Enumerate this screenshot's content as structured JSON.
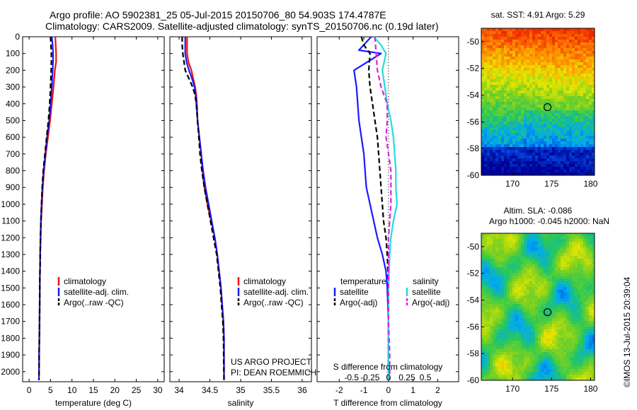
{
  "header": {
    "title_line1": "Argo profile: AO 5902381_25 05-Jul-2015 20150706_80 54.903S 174.4787E",
    "title_line2": "Climatology: CARS2009. Satellite-adjusted climatology: synTS_20150706.nc (0.19d later)"
  },
  "watermark": "©IMOS 13-Jul-2015 20:39:04",
  "colors": {
    "red": "#ee1111",
    "blue": "#1a1aff",
    "black": "#000000",
    "cyan": "#22dddd",
    "magenta": "#dd22dd"
  },
  "chart_data": [
    {
      "type": "line",
      "id": "temperature",
      "xlabel": "temperature (deg C)",
      "xlim": [
        -1.5,
        31.5
      ],
      "xticks": [
        0,
        5,
        10,
        15,
        20,
        25,
        30
      ],
      "ylim": [
        0,
        2060
      ],
      "yticks": [
        0,
        100,
        200,
        300,
        400,
        500,
        600,
        700,
        800,
        900,
        1000,
        1100,
        1200,
        1300,
        1400,
        1500,
        1600,
        1700,
        1800,
        1900,
        2000
      ],
      "legend": [
        "climatology",
        "satellite-adj. clim.",
        "Argo(..raw -QC)"
      ],
      "series": [
        {
          "name": "climatology",
          "color": "red",
          "dash": false,
          "points": [
            [
              6.1,
              0
            ],
            [
              6.2,
              50
            ],
            [
              6.3,
              100
            ],
            [
              6.3,
              150
            ],
            [
              6.0,
              200
            ],
            [
              5.7,
              300
            ],
            [
              5.3,
              400
            ],
            [
              4.9,
              500
            ],
            [
              4.4,
              600
            ],
            [
              3.9,
              700
            ],
            [
              3.5,
              800
            ],
            [
              3.2,
              900
            ],
            [
              3.0,
              1000
            ],
            [
              2.8,
              1100
            ],
            [
              2.7,
              1200
            ],
            [
              2.6,
              1300
            ],
            [
              2.55,
              1400
            ],
            [
              2.5,
              1500
            ],
            [
              2.45,
              1700
            ],
            [
              2.35,
              1900
            ],
            [
              2.3,
              2050
            ]
          ]
        },
        {
          "name": "satellite-adj. clim.",
          "color": "blue",
          "dash": false,
          "points": [
            [
              5.3,
              0
            ],
            [
              5.5,
              50
            ],
            [
              5.6,
              100
            ],
            [
              5.6,
              150
            ],
            [
              5.5,
              200
            ],
            [
              5.3,
              300
            ],
            [
              5.0,
              400
            ],
            [
              4.7,
              500
            ],
            [
              4.2,
              600
            ],
            [
              3.8,
              700
            ],
            [
              3.4,
              800
            ],
            [
              3.1,
              900
            ],
            [
              2.9,
              1000
            ],
            [
              2.75,
              1100
            ],
            [
              2.65,
              1200
            ],
            [
              2.6,
              1300
            ],
            [
              2.55,
              1400
            ],
            [
              2.5,
              1500
            ],
            [
              2.45,
              1700
            ],
            [
              2.35,
              1900
            ],
            [
              2.3,
              2050
            ]
          ]
        },
        {
          "name": "Argo(..raw -QC)",
          "color": "black",
          "dash": true,
          "points": [
            [
              5.0,
              0
            ],
            [
              5.1,
              50
            ],
            [
              5.2,
              100
            ],
            [
              5.2,
              150
            ],
            [
              5.15,
              200
            ],
            [
              5.0,
              300
            ],
            [
              4.8,
              400
            ],
            [
              4.5,
              500
            ],
            [
              4.1,
              600
            ],
            [
              3.7,
              700
            ],
            [
              3.3,
              800
            ],
            [
              3.05,
              900
            ],
            [
              2.9,
              1000
            ],
            [
              2.75,
              1100
            ],
            [
              2.65,
              1200
            ],
            [
              2.6,
              1300
            ],
            [
              2.55,
              1400
            ],
            [
              2.5,
              1500
            ],
            [
              2.45,
              1700
            ],
            [
              2.35,
              1900
            ],
            [
              2.3,
              2050
            ]
          ]
        }
      ]
    },
    {
      "type": "line",
      "id": "salinity",
      "xlabel": "salinity",
      "xlim": [
        33.85,
        36.15
      ],
      "xticks": [
        34,
        34.5,
        35,
        35.5,
        36
      ],
      "ylim": [
        0,
        2060
      ],
      "legend": [
        "climatology",
        "satellite-adj. clim.",
        "Argo(..raw -QC)"
      ],
      "annotation_line1": "US ARGO PROJECT",
      "annotation_line2": "PI: DEAN ROEMMICH",
      "series": [
        {
          "name": "climatology",
          "color": "red",
          "dash": false,
          "points": [
            [
              34.13,
              0
            ],
            [
              34.13,
              50
            ],
            [
              34.13,
              100
            ],
            [
              34.15,
              150
            ],
            [
              34.2,
              200
            ],
            [
              34.23,
              250
            ],
            [
              34.26,
              300
            ],
            [
              34.28,
              350
            ],
            [
              34.29,
              400
            ],
            [
              34.3,
              500
            ],
            [
              34.33,
              600
            ],
            [
              34.36,
              700
            ],
            [
              34.38,
              800
            ],
            [
              34.41,
              900
            ],
            [
              34.46,
              1000
            ],
            [
              34.52,
              1100
            ],
            [
              34.58,
              1200
            ],
            [
              34.62,
              1300
            ],
            [
              34.65,
              1400
            ],
            [
              34.68,
              1500
            ],
            [
              34.7,
              1600
            ],
            [
              34.72,
              1700
            ],
            [
              34.73,
              1800
            ],
            [
              34.73,
              2050
            ]
          ]
        },
        {
          "name": "satellite-adj. clim.",
          "color": "blue",
          "dash": false,
          "points": [
            [
              34.1,
              0
            ],
            [
              34.1,
              50
            ],
            [
              34.1,
              100
            ],
            [
              34.12,
              150
            ],
            [
              34.16,
              200
            ],
            [
              34.21,
              250
            ],
            [
              34.25,
              300
            ],
            [
              34.27,
              350
            ],
            [
              34.28,
              400
            ],
            [
              34.3,
              500
            ],
            [
              34.33,
              600
            ],
            [
              34.36,
              700
            ],
            [
              34.39,
              800
            ],
            [
              34.43,
              900
            ],
            [
              34.48,
              1000
            ],
            [
              34.53,
              1100
            ],
            [
              34.58,
              1200
            ],
            [
              34.62,
              1300
            ],
            [
              34.65,
              1400
            ],
            [
              34.68,
              1500
            ],
            [
              34.7,
              1600
            ],
            [
              34.72,
              1700
            ],
            [
              34.73,
              1800
            ],
            [
              34.73,
              2050
            ]
          ]
        },
        {
          "name": "Argo(..raw -QC)",
          "color": "black",
          "dash": true,
          "points": [
            [
              34.05,
              0
            ],
            [
              34.05,
              50
            ],
            [
              34.06,
              100
            ],
            [
              34.08,
              150
            ],
            [
              34.1,
              200
            ],
            [
              34.16,
              250
            ],
            [
              34.22,
              300
            ],
            [
              34.26,
              350
            ],
            [
              34.28,
              400
            ],
            [
              34.3,
              500
            ],
            [
              34.32,
              600
            ],
            [
              34.34,
              700
            ],
            [
              34.37,
              800
            ],
            [
              34.41,
              900
            ],
            [
              34.46,
              1000
            ],
            [
              34.51,
              1100
            ],
            [
              34.56,
              1200
            ],
            [
              34.61,
              1300
            ],
            [
              34.64,
              1400
            ],
            [
              34.67,
              1500
            ],
            [
              34.69,
              1600
            ],
            [
              34.71,
              1700
            ],
            [
              34.72,
              1800
            ],
            [
              34.73,
              2050
            ]
          ]
        }
      ]
    },
    {
      "type": "line",
      "id": "differences",
      "xlabel": "T difference from climatology",
      "xlabel_top": "S difference from climatology",
      "xlim": [
        -2.9,
        2.85
      ],
      "xticks": [
        -2,
        -1,
        0,
        1,
        2
      ],
      "xticks_top": [
        {
          "pos": -1.5,
          "label": "-0.5"
        },
        {
          "pos": -0.75,
          "label": "-0.25"
        },
        {
          "pos": 0,
          "label": "0"
        },
        {
          "pos": 0.75,
          "label": "0.25"
        },
        {
          "pos": 1.5,
          "label": "0.5"
        }
      ],
      "ylim": [
        0,
        2060
      ],
      "legend_t_title": "temperature",
      "legend_s_title": "salinity",
      "legend_t": [
        "satellite",
        "Argo(-adj)"
      ],
      "legend_s": [
        "satellite",
        "Argo(-adj)"
      ],
      "series": [
        {
          "name": "T satellite",
          "color": "blue",
          "dash": false,
          "points": [
            [
              -0.7,
              0
            ],
            [
              -1.2,
              80
            ],
            [
              -0.3,
              100
            ],
            [
              -1.4,
              200
            ],
            [
              -1.3,
              300
            ],
            [
              -1.25,
              400
            ],
            [
              -1.2,
              500
            ],
            [
              -1.1,
              600
            ],
            [
              -1.0,
              700
            ],
            [
              -0.95,
              800
            ],
            [
              -0.9,
              900
            ],
            [
              -0.75,
              1000
            ],
            [
              -0.6,
              1100
            ],
            [
              -0.45,
              1200
            ],
            [
              -0.25,
              1300
            ],
            [
              -0.1,
              1400
            ],
            [
              -0.05,
              1500
            ],
            [
              0,
              1700
            ],
            [
              0,
              2050
            ]
          ]
        },
        {
          "name": "T Argo(-adj)",
          "color": "black",
          "dash": true,
          "points": [
            [
              -1.1,
              0
            ],
            [
              -1.0,
              50
            ],
            [
              -0.75,
              100
            ],
            [
              -0.8,
              200
            ],
            [
              -0.75,
              300
            ],
            [
              -0.65,
              400
            ],
            [
              -0.55,
              500
            ],
            [
              -0.45,
              600
            ],
            [
              -0.4,
              700
            ],
            [
              -0.35,
              800
            ],
            [
              -0.3,
              900
            ],
            [
              -0.25,
              1000
            ],
            [
              -0.2,
              1100
            ],
            [
              -0.1,
              1200
            ],
            [
              -0.05,
              1300
            ],
            [
              0,
              1500
            ],
            [
              0,
              2050
            ]
          ]
        },
        {
          "name": "S satellite",
          "color": "cyan",
          "dash": false,
          "points": [
            [
              -0.6,
              0
            ],
            [
              -0.3,
              50
            ],
            [
              -0.1,
              100
            ],
            [
              -0.25,
              200
            ],
            [
              -0.15,
              300
            ],
            [
              -0.05,
              400
            ],
            [
              0.1,
              500
            ],
            [
              0.2,
              600
            ],
            [
              0.25,
              700
            ],
            [
              0.3,
              800
            ],
            [
              0.3,
              900
            ],
            [
              0.35,
              1000
            ],
            [
              0.2,
              1100
            ],
            [
              0.1,
              1200
            ],
            [
              0.05,
              1300
            ],
            [
              0,
              1500
            ],
            [
              0,
              2050
            ]
          ]
        },
        {
          "name": "S Argo(-adj)",
          "color": "magenta",
          "dash": true,
          "points": [
            [
              -0.55,
              0
            ],
            [
              -0.5,
              100
            ],
            [
              -0.45,
              200
            ],
            [
              -0.3,
              300
            ],
            [
              -0.05,
              400
            ],
            [
              -0.05,
              500
            ],
            [
              -0.1,
              600
            ],
            [
              0,
              700
            ],
            [
              0.1,
              800
            ],
            [
              0.1,
              900
            ],
            [
              0.1,
              1000
            ],
            [
              0.05,
              1100
            ],
            [
              0,
              1200
            ],
            [
              0,
              1500
            ],
            [
              0,
              1700
            ],
            [
              0.05,
              1900
            ],
            [
              0.05,
              2050
            ]
          ]
        }
      ]
    },
    {
      "type": "heatmap",
      "id": "sst_map",
      "title": "sat. SST: 4.91  Argo: 5.29",
      "xlim": [
        166,
        180.5
      ],
      "ylim": [
        -60,
        -49
      ],
      "xticks": [
        170,
        175,
        180
      ],
      "yticks": [
        -50,
        -52,
        -54,
        -56,
        -58,
        -60
      ],
      "marker": {
        "lon": 174.48,
        "lat": -54.9
      }
    },
    {
      "type": "heatmap",
      "id": "sla_map",
      "title_line1": "Altim. SLA: -0.086",
      "title_line2": "Argo h1000: -0.045  h2000: NaN",
      "xlim": [
        166,
        180.5
      ],
      "ylim": [
        -60,
        -49
      ],
      "xticks": [
        170,
        175,
        180
      ],
      "yticks": [
        -50,
        -52,
        -54,
        -56,
        -58,
        -60
      ],
      "marker": {
        "lon": 174.48,
        "lat": -54.9
      }
    }
  ]
}
